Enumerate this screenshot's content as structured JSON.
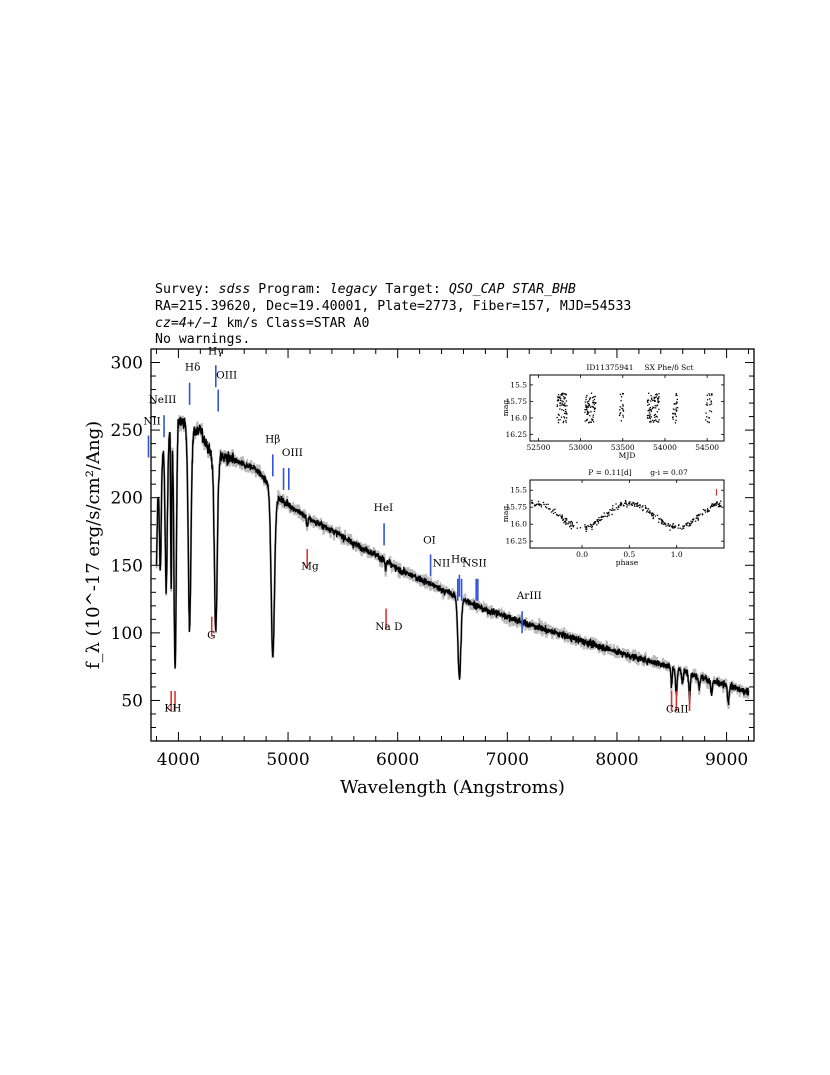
{
  "header": {
    "line1": {
      "survey_label": "Survey: ",
      "survey": "sdss",
      "program_label": " Program: ",
      "program": "legacy",
      "target_label": " Target: ",
      "target": "QSO_CAP STAR_BHB"
    },
    "line2": "RA=215.39620, Dec=19.40001, Plate=2773, Fiber=157, MJD=54533",
    "line3": {
      "cz": "cz=4+/−1",
      "rest": " km/s Class=STAR A0"
    },
    "line4": "No warnings."
  },
  "chart_data": [
    {
      "type": "line",
      "name": "spectrum",
      "xlabel": "Wavelength (Angstroms)",
      "ylabel": "f_λ (10^-17 erg/s/cm²/Ang)",
      "xlim": [
        3750,
        9250
      ],
      "ylim": [
        20,
        310
      ],
      "xticks": [
        4000,
        5000,
        6000,
        7000,
        8000,
        9000
      ],
      "yticks": [
        50,
        100,
        150,
        200,
        250,
        300
      ],
      "continuum": [
        [
          3800,
          200
        ],
        [
          3850,
          230
        ],
        [
          3900,
          245
        ],
        [
          3950,
          255
        ],
        [
          4000,
          260
        ],
        [
          4050,
          255
        ],
        [
          4100,
          250
        ],
        [
          4200,
          250
        ],
        [
          4250,
          240
        ],
        [
          4300,
          232
        ],
        [
          4400,
          230
        ],
        [
          4500,
          228
        ],
        [
          4600,
          224
        ],
        [
          4700,
          222
        ],
        [
          4800,
          212
        ],
        [
          4900,
          200
        ],
        [
          5000,
          195
        ],
        [
          5200,
          184
        ],
        [
          5400,
          176
        ],
        [
          5600,
          166
        ],
        [
          5800,
          158
        ],
        [
          6000,
          147
        ],
        [
          6200,
          140
        ],
        [
          6400,
          132
        ],
        [
          6600,
          125
        ],
        [
          6800,
          117
        ],
        [
          7000,
          112
        ],
        [
          7200,
          106
        ],
        [
          7400,
          101
        ],
        [
          7600,
          96
        ],
        [
          7800,
          91
        ],
        [
          8000,
          86
        ],
        [
          8200,
          81
        ],
        [
          8400,
          77
        ],
        [
          8600,
          72
        ],
        [
          8800,
          66
        ],
        [
          9000,
          61
        ],
        [
          9200,
          56
        ]
      ],
      "absorption_lines": [
        {
          "center": 3798,
          "depth": 55,
          "width": 8
        },
        {
          "center": 3835,
          "depth": 75,
          "width": 9
        },
        {
          "center": 3889,
          "depth": 110,
          "width": 11
        },
        {
          "center": 3934,
          "depth": 120,
          "width": 5
        },
        {
          "center": 3970,
          "depth": 185,
          "width": 12
        },
        {
          "center": 4102,
          "depth": 145,
          "width": 14
        },
        {
          "center": 4341,
          "depth": 128,
          "width": 15
        },
        {
          "center": 4861,
          "depth": 122,
          "width": 17
        },
        {
          "center": 5175,
          "depth": 6,
          "width": 8
        },
        {
          "center": 5890,
          "depth": 8,
          "width": 5
        },
        {
          "center": 6563,
          "depth": 60,
          "width": 15
        },
        {
          "center": 8498,
          "depth": 12,
          "width": 7
        },
        {
          "center": 8542,
          "depth": 20,
          "width": 8
        },
        {
          "center": 8598,
          "depth": 10,
          "width": 7
        },
        {
          "center": 8662,
          "depth": 16,
          "width": 8
        },
        {
          "center": 8750,
          "depth": 8,
          "width": 7
        },
        {
          "center": 8863,
          "depth": 10,
          "width": 8
        },
        {
          "center": 9015,
          "depth": 12,
          "width": 8
        }
      ],
      "emission_markers": [
        {
          "label": "NII",
          "x": 3727,
          "y": 246,
          "color": "#3355dd"
        },
        {
          "label": "NeIII",
          "x": 3869,
          "y": 261,
          "color": "#3355dd"
        },
        {
          "label": "Hδ",
          "x": 4102,
          "y": 285,
          "color": "#3355dd"
        },
        {
          "label": "Hγ",
          "x": 4341,
          "y": 298,
          "color": "#3355dd"
        },
        {
          "label": "OIII",
          "x": 4363,
          "y": 280,
          "color": "#3355dd"
        },
        {
          "label": "Hβ",
          "x": 4861,
          "y": 232,
          "color": "#3355dd"
        },
        {
          "label": "OIII",
          "x": 4959,
          "y": 222,
          "color": "#3355dd"
        },
        {
          "label": "OIII",
          "x": 5007,
          "y": 222,
          "color": "#3355dd"
        },
        {
          "label": "HeI",
          "x": 5876,
          "y": 181,
          "color": "#3355dd"
        },
        {
          "label": "OI",
          "x": 6300,
          "y": 158,
          "color": "#3355dd"
        },
        {
          "label": "NII",
          "x": 6548,
          "y": 140,
          "color": "#3355dd"
        },
        {
          "label": "Hα",
          "x": 6563,
          "y": 143,
          "color": "#3355dd"
        },
        {
          "label": "NII",
          "x": 6583,
          "y": 140,
          "color": "#3355dd"
        },
        {
          "label": "SII",
          "x": 6716,
          "y": 140,
          "color": "#3355dd"
        },
        {
          "label": "SII",
          "x": 6731,
          "y": 140,
          "color": "#3355dd"
        },
        {
          "label": "ArIII",
          "x": 7135,
          "y": 116,
          "color": "#3355dd"
        }
      ],
      "absorption_markers": [
        {
          "label": "K",
          "x": 3934,
          "y": 57,
          "color": "#dd3333"
        },
        {
          "label": "H",
          "x": 3969,
          "y": 57,
          "color": "#dd3333"
        },
        {
          "label": "G",
          "x": 4304,
          "y": 112,
          "color": "#dd3333"
        },
        {
          "label": "Mg",
          "x": 5175,
          "y": 162,
          "color": "#dd3333"
        },
        {
          "label": "Na D",
          "x": 5894,
          "y": 118,
          "color": "#dd3333"
        },
        {
          "label": "CaII",
          "x": 8498,
          "y": 57,
          "color": "#dd3333"
        },
        {
          "label": "CaII",
          "x": 8542,
          "y": 57,
          "color": "#dd3333"
        },
        {
          "label": "CaII",
          "x": 8662,
          "y": 57,
          "color": "#dd3333"
        }
      ],
      "marker_labels": [
        {
          "text": "NII",
          "x": 3760,
          "y": 254
        },
        {
          "text": "NeIII",
          "x": 3855,
          "y": 270
        },
        {
          "text": "Hδ",
          "x": 4130,
          "y": 294
        },
        {
          "text": "Hγ",
          "x": 4340,
          "y": 306
        },
        {
          "text": "OIII",
          "x": 4440,
          "y": 288
        },
        {
          "text": "Hβ",
          "x": 4860,
          "y": 241
        },
        {
          "text": "OIII",
          "x": 5040,
          "y": 231
        },
        {
          "text": "HeI",
          "x": 5870,
          "y": 190
        },
        {
          "text": "OI",
          "x": 6290,
          "y": 166
        },
        {
          "text": "NII",
          "x": 6400,
          "y": 149
        },
        {
          "text": "Hα",
          "x": 6560,
          "y": 152
        },
        {
          "text": "NSII",
          "x": 6700,
          "y": 149
        },
        {
          "text": "ArIII",
          "x": 7200,
          "y": 125
        },
        {
          "text": "Na D",
          "x": 5920,
          "y": 102
        },
        {
          "text": "Mg",
          "x": 5200,
          "y": 147
        },
        {
          "text": "G",
          "x": 4300,
          "y": 96
        },
        {
          "text": "KH",
          "x": 3950,
          "y": 42
        },
        {
          "text": "CaII",
          "x": 8550,
          "y": 41
        }
      ]
    },
    {
      "type": "scatter",
      "name": "inset-lightcurve",
      "title_left": "ID11375941",
      "title_right": "SX Phe/δ Sct",
      "xlabel": "MJD",
      "ylabel": "mag",
      "xlim": [
        52400,
        54700
      ],
      "ylim": [
        16.35,
        15.35
      ],
      "xticks": [
        52500,
        53000,
        53500,
        54000,
        54500
      ],
      "yticks": [
        16.25,
        16.0,
        15.75,
        15.5
      ],
      "ytick_labels": [
        "16.25",
        "16.0",
        "15.75",
        "15.5"
      ],
      "clusters": [
        {
          "x0": 52720,
          "x1": 52840,
          "n": 70
        },
        {
          "x0": 53050,
          "x1": 53180,
          "n": 70
        },
        {
          "x0": 53460,
          "x1": 53510,
          "n": 20
        },
        {
          "x0": 53790,
          "x1": 53930,
          "n": 75
        },
        {
          "x0": 54090,
          "x1": 54150,
          "n": 25
        },
        {
          "x0": 54480,
          "x1": 54560,
          "n": 25
        }
      ],
      "mag_center": 15.85,
      "mag_spread": 0.45
    },
    {
      "type": "scatter",
      "name": "inset-phased",
      "title_left": "P = 0.11[d]",
      "title_right": "g-i = 0.07",
      "xlabel": "phase",
      "ylabel": "mag",
      "xlim": [
        -0.55,
        1.5
      ],
      "ylim": [
        16.35,
        15.35
      ],
      "xticks": [
        0.0,
        0.5,
        1.0
      ],
      "xtick_labels": [
        "0.0",
        "0.5",
        "1.0"
      ],
      "yticks": [
        15.5,
        15.75,
        16.0,
        16.25
      ],
      "ytick_labels": [
        "15.5",
        "15.75",
        "16.0",
        "16.25"
      ],
      "n_points": 340,
      "mean_mag": 15.87,
      "amplitude": 0.18,
      "error_bar": {
        "x": 1.42,
        "y": 15.53,
        "half": 0.05,
        "color": "#cc2222"
      }
    }
  ]
}
